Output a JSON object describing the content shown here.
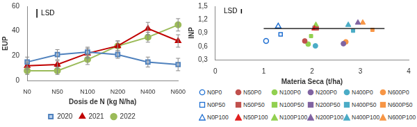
{
  "chart_data": [
    {
      "type": "line",
      "x_label": "Dosis de N (kg N/ha)",
      "y_label": "EUP",
      "categories": [
        "N0",
        "N50",
        "N100",
        "N200",
        "N400",
        "N600"
      ],
      "ylim": [
        0,
        60
      ],
      "yticks": [
        0,
        20,
        40,
        60
      ],
      "grid": false,
      "legend": "bottom",
      "lsd": {
        "label": "LSD",
        "value": 7
      },
      "series": [
        {
          "name": "2020",
          "color": "#4f81bd",
          "marker": "square",
          "values": [
            15,
            21,
            23,
            21,
            15,
            13
          ],
          "errors": [
            4,
            4,
            4,
            3,
            4,
            5
          ]
        },
        {
          "name": "2021",
          "color": "#c00000",
          "marker": "triangle",
          "values": [
            12,
            13,
            22,
            28,
            42,
            32
          ],
          "errors": [
            3,
            3,
            4,
            4,
            5,
            5
          ]
        },
        {
          "name": "2022",
          "color": "#9bbb59",
          "marker": "circle",
          "values": [
            8,
            8,
            17,
            28,
            35,
            45
          ],
          "errors": [
            3,
            3,
            4,
            4,
            4,
            5
          ]
        }
      ]
    },
    {
      "type": "scatter",
      "x_label": "Materia Seca (t/ha)",
      "y_label": "INP",
      "xlim": [
        0,
        4
      ],
      "xticks": [
        0,
        1,
        2,
        3,
        4
      ],
      "ylim": [
        0.3,
        1.5
      ],
      "yticks": [
        {
          "value": 0.3,
          "label": "0,3"
        },
        {
          "value": 0.6,
          "label": "0,6"
        },
        {
          "value": 0.9,
          "label": "0,9"
        },
        {
          "value": 1.2,
          "label": "1,2"
        },
        {
          "value": 1.5,
          "label": "1,5"
        }
      ],
      "grid": false,
      "legend": "bottom",
      "lsd": {
        "label": "LSD",
        "value": 0.1
      },
      "reference_line": {
        "y": 1,
        "x": [
          1,
          3.5
        ]
      },
      "series": [
        {
          "name": "N0P0",
          "color": "#1f6fd1",
          "marker": "circle-open",
          "x": [
            1.05
          ],
          "y": [
            0.72
          ]
        },
        {
          "name": "N0P50",
          "color": "#1f6fd1",
          "marker": "square-open",
          "x": [
            1.35
          ],
          "y": [
            0.87
          ]
        },
        {
          "name": "N0P100",
          "color": "#1f6fd1",
          "marker": "triangle-open",
          "x": [
            1.3
          ],
          "y": [
            1.05
          ]
        },
        {
          "name": "N50P0",
          "color": "#c0504d",
          "marker": "circle",
          "x": [
            1.85
          ],
          "y": [
            0.72
          ]
        },
        {
          "name": "N50P50",
          "color": "#c0504d",
          "marker": "square",
          "x": [
            2.1
          ],
          "y": [
            1.0
          ]
        },
        {
          "name": "N50P100",
          "color": "#e02020",
          "marker": "triangle",
          "x": [
            2.05
          ],
          "y": [
            1.0
          ]
        },
        {
          "name": "N100P0",
          "color": "#92d050",
          "marker": "circle",
          "x": [
            1.92
          ],
          "y": [
            0.65
          ]
        },
        {
          "name": "N100P50",
          "color": "#92d050",
          "marker": "square",
          "x": [
            1.98
          ],
          "y": [
            0.83
          ]
        },
        {
          "name": "N100P100",
          "color": "#92d050",
          "marker": "triangle",
          "x": [
            2.08
          ],
          "y": [
            1.08
          ]
        },
        {
          "name": "N200P0",
          "color": "#8064a2",
          "marker": "circle",
          "x": [
            2.65
          ],
          "y": [
            0.66
          ]
        },
        {
          "name": "N200P50",
          "color": "#8064a2",
          "marker": "square",
          "x": [
            2.05
          ],
          "y": [
            1.02
          ]
        },
        {
          "name": "N200P100",
          "color": "#8064a2",
          "marker": "triangle",
          "x": [
            2.95
          ],
          "y": [
            1.13
          ]
        },
        {
          "name": "N400P0",
          "color": "#4bacc6",
          "marker": "circle",
          "x": [
            2.07
          ],
          "y": [
            0.61
          ]
        },
        {
          "name": "N400P50",
          "color": "#4bacc6",
          "marker": "square",
          "x": [
            2.85
          ],
          "y": [
            0.95
          ]
        },
        {
          "name": "N400P100",
          "color": "#4bacc6",
          "marker": "triangle",
          "x": [
            2.75
          ],
          "y": [
            1.08
          ]
        },
        {
          "name": "N600P0",
          "color": "#f79646",
          "marker": "circle",
          "x": [
            2.7
          ],
          "y": [
            0.7
          ]
        },
        {
          "name": "N600P50",
          "color": "#f79646",
          "marker": "square",
          "x": [
            3.25
          ],
          "y": [
            0.97
          ]
        },
        {
          "name": "N600P100",
          "color": "#f79646",
          "marker": "triangle",
          "x": [
            3.05
          ],
          "y": [
            1.13
          ]
        }
      ]
    }
  ]
}
